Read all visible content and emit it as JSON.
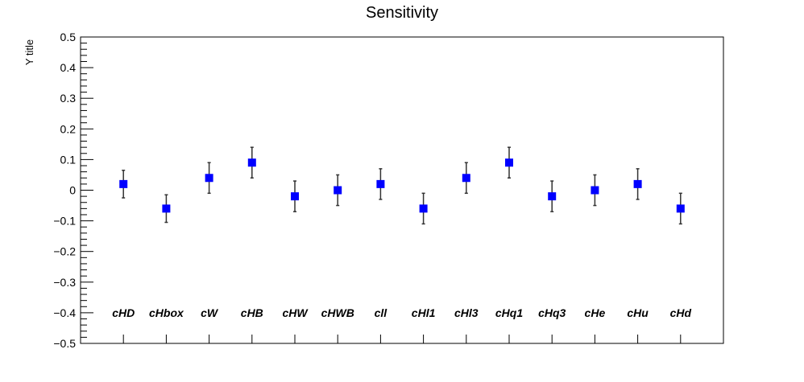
{
  "chart_data": {
    "type": "scatter",
    "title": "Sensitivity",
    "ylabel": "Y title",
    "xlabel": "",
    "ylim": [
      -0.5,
      0.5
    ],
    "yticks": [
      -0.5,
      -0.4,
      -0.3,
      -0.2,
      -0.1,
      0,
      0.1,
      0.2,
      0.3,
      0.4,
      0.5
    ],
    "ytick_labels": [
      "−0.5",
      "−0.4",
      "−0.3",
      "−0.2",
      "−0.1",
      "0",
      "0.1",
      "0.2",
      "0.3",
      "0.4",
      "0.5"
    ],
    "grid": false,
    "marker": "square",
    "marker_color": "#0000ff",
    "error_bar_color": "#333333",
    "label_y": -0.4,
    "categories": [
      "cHD",
      "cHbox",
      "cW",
      "cHB",
      "cHW",
      "cHWB",
      "cll",
      "cHl1",
      "cHl3",
      "cHq1",
      "cHq3",
      "cHe",
      "cHu",
      "cHd"
    ],
    "values": [
      0.02,
      -0.06,
      0.04,
      0.09,
      -0.02,
      0.0,
      0.02,
      -0.06,
      0.04,
      0.09,
      -0.02,
      0.0,
      0.02,
      -0.06
    ],
    "errors": [
      0.045,
      0.045,
      0.05,
      0.05,
      0.05,
      0.05,
      0.05,
      0.05,
      0.05,
      0.05,
      0.05,
      0.05,
      0.05,
      0.05
    ]
  }
}
